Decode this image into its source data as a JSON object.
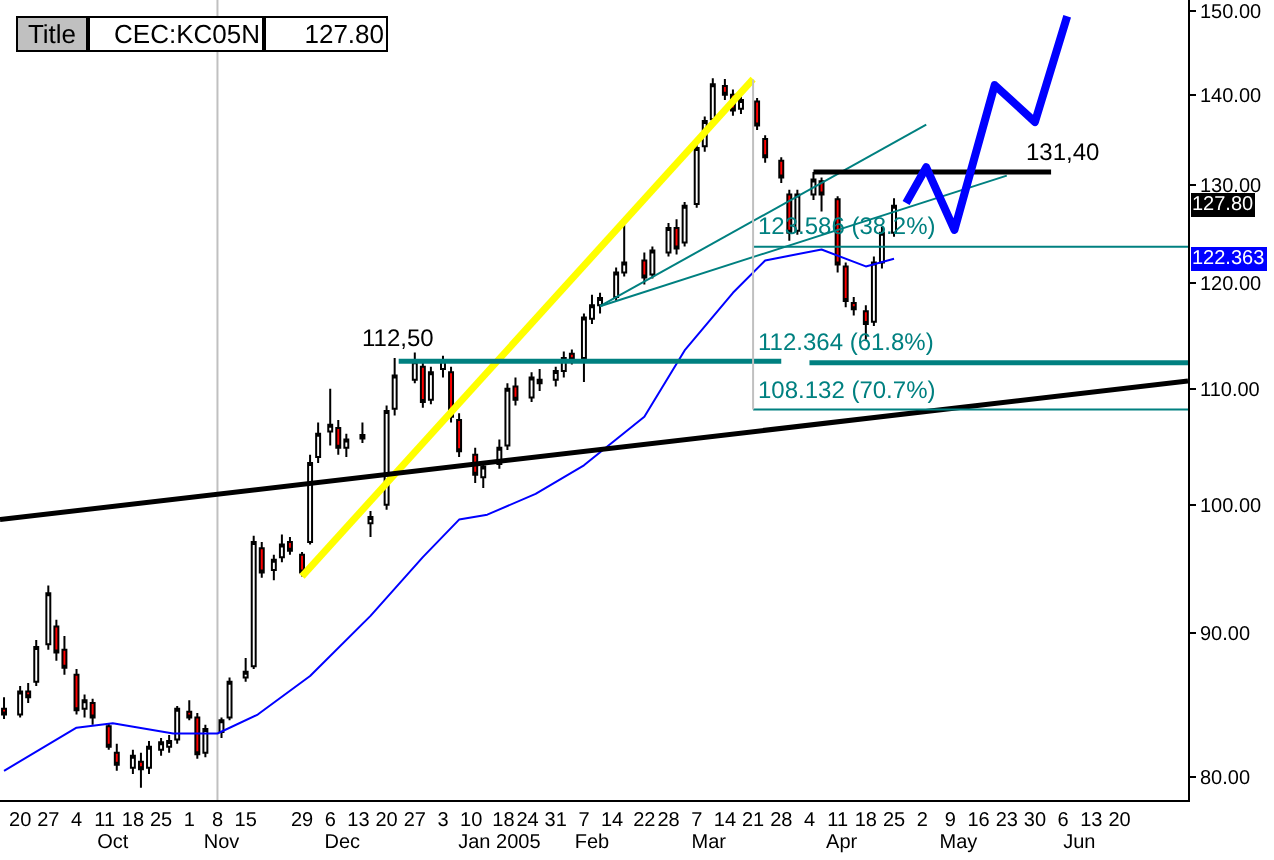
{
  "chart_data": {
    "type": "candlestick",
    "title": "Title",
    "subtitle": "CEC:KC05N",
    "color": "#000000",
    "x": [
      "2004-09-16",
      "2004-09-20",
      "2004-09-22",
      "2004-09-24",
      "2004-09-27",
      "2004-09-29",
      "2004-10-01",
      "2004-10-04",
      "2004-10-06",
      "2004-10-08",
      "2004-10-12",
      "2004-10-14",
      "2004-10-18",
      "2004-10-20",
      "2004-10-22",
      "2004-10-25",
      "2004-10-27",
      "2004-10-29",
      "2004-11-01",
      "2004-11-03",
      "2004-11-05",
      "2004-11-09",
      "2004-11-11",
      "2004-11-15",
      "2004-11-17",
      "2004-11-19",
      "2004-11-22",
      "2004-11-24",
      "2004-11-26",
      "2004-11-29",
      "2004-12-01",
      "2004-12-03",
      "2004-12-06",
      "2004-12-08",
      "2004-12-10",
      "2004-12-14",
      "2004-12-16",
      "2004-12-20",
      "2004-12-22",
      "2004-12-27",
      "2004-12-29",
      "2004-12-31",
      "2005-01-03",
      "2005-01-05",
      "2005-01-07",
      "2005-01-11",
      "2005-01-13",
      "2005-01-17",
      "2005-01-19",
      "2005-01-21",
      "2005-01-25",
      "2005-01-27",
      "2005-01-31",
      "2005-02-02",
      "2005-02-04",
      "2005-02-07",
      "2005-02-09",
      "2005-02-11",
      "2005-02-15",
      "2005-02-17",
      "2005-02-22",
      "2005-02-24",
      "2005-02-28",
      "2005-03-02",
      "2005-03-04",
      "2005-03-07",
      "2005-03-09",
      "2005-03-11",
      "2005-03-14",
      "2005-03-16",
      "2005-03-18",
      "2005-03-22",
      "2005-03-24",
      "2005-03-28",
      "2005-03-30",
      "2005-04-01",
      "2005-04-05",
      "2005-04-07",
      "2005-04-11",
      "2005-04-13",
      "2005-04-15",
      "2005-04-18",
      "2005-04-20",
      "2005-04-22",
      "2005-04-25"
    ],
    "ohlc": [
      [
        84.6,
        85.4,
        83.9,
        84.2
      ],
      [
        84.2,
        86.2,
        84.0,
        85.8
      ],
      [
        85.8,
        86.4,
        85.0,
        85.4
      ],
      [
        86.5,
        89.5,
        86.2,
        89.0
      ],
      [
        89.2,
        93.6,
        88.8,
        93.0
      ],
      [
        90.5,
        91.0,
        88.0,
        88.6
      ],
      [
        88.8,
        89.8,
        87.0,
        87.5
      ],
      [
        87.0,
        87.4,
        84.2,
        84.5
      ],
      [
        84.6,
        85.6,
        84.0,
        85.2
      ],
      [
        85.0,
        85.3,
        83.5,
        84.0
      ],
      [
        83.4,
        83.6,
        81.8,
        82.0
      ],
      [
        81.6,
        82.2,
        80.4,
        80.8
      ],
      [
        80.6,
        81.8,
        80.2,
        81.4
      ],
      [
        81.0,
        81.6,
        79.3,
        80.5
      ],
      [
        80.6,
        82.4,
        80.2,
        82.0
      ],
      [
        81.8,
        82.6,
        81.4,
        82.3
      ],
      [
        82.0,
        82.8,
        81.6,
        82.4
      ],
      [
        82.5,
        84.8,
        82.2,
        84.6
      ],
      [
        84.4,
        85.2,
        83.8,
        84.0
      ],
      [
        84.0,
        84.3,
        81.2,
        81.5
      ],
      [
        81.6,
        83.5,
        81.3,
        83.2
      ],
      [
        83.0,
        84.0,
        82.6,
        83.8
      ],
      [
        84.0,
        86.8,
        83.8,
        86.5
      ],
      [
        86.8,
        88.2,
        86.5,
        87.2
      ],
      [
        87.6,
        97.5,
        87.4,
        97.0
      ],
      [
        96.5,
        97.0,
        94.2,
        94.6
      ],
      [
        94.8,
        96.0,
        94.0,
        95.6
      ],
      [
        95.8,
        97.6,
        95.4,
        96.8
      ],
      [
        97.0,
        97.4,
        96.0,
        96.3
      ],
      [
        96.0,
        96.2,
        94.3,
        94.6
      ],
      [
        97.0,
        104.2,
        96.8,
        103.5
      ],
      [
        104.0,
        107.0,
        103.5,
        106.0
      ],
      [
        106.2,
        110.0,
        105.0,
        106.8
      ],
      [
        106.5,
        107.2,
        104.2,
        104.8
      ],
      [
        104.8,
        106.0,
        104.0,
        105.5
      ],
      [
        105.6,
        107.0,
        105.2,
        105.9
      ],
      [
        98.5,
        99.5,
        97.4,
        99.0
      ],
      [
        100.0,
        108.5,
        99.6,
        108.0
      ],
      [
        108.2,
        112.8,
        107.6,
        111.2
      ],
      [
        110.8,
        113.3,
        110.5,
        112.5
      ],
      [
        112.0,
        112.4,
        108.3,
        108.8
      ],
      [
        109.0,
        112.0,
        108.6,
        111.5
      ],
      [
        111.8,
        113.0,
        111.0,
        112.6
      ],
      [
        111.5,
        112.0,
        107.0,
        107.5
      ],
      [
        107.2,
        107.8,
        104.0,
        104.5
      ],
      [
        104.2,
        104.8,
        101.8,
        102.5
      ],
      [
        102.3,
        103.6,
        101.4,
        103.2
      ],
      [
        103.4,
        105.5,
        103.0,
        104.8
      ],
      [
        105.0,
        110.5,
        104.6,
        110.0
      ],
      [
        110.2,
        111.0,
        108.5,
        109.0
      ],
      [
        109.2,
        111.5,
        108.8,
        111.0
      ],
      [
        110.8,
        111.8,
        109.8,
        110.5
      ],
      [
        110.8,
        112.0,
        110.2,
        111.6
      ],
      [
        111.6,
        113.4,
        111.0,
        112.8
      ],
      [
        113.2,
        113.6,
        112.2,
        112.6
      ],
      [
        112.8,
        117.0,
        110.6,
        116.6
      ],
      [
        116.5,
        118.8,
        116.0,
        117.8
      ],
      [
        117.8,
        119.0,
        117.0,
        118.5
      ],
      [
        118.6,
        121.5,
        118.2,
        121.0
      ],
      [
        121.0,
        125.8,
        120.6,
        122.0
      ],
      [
        122.2,
        123.0,
        119.8,
        120.5
      ],
      [
        120.8,
        123.6,
        120.4,
        123.2
      ],
      [
        123.0,
        126.0,
        122.6,
        125.5
      ],
      [
        125.5,
        126.4,
        122.8,
        123.4
      ],
      [
        124.0,
        128.2,
        123.6,
        127.8
      ],
      [
        128.0,
        134.5,
        127.6,
        134.0
      ],
      [
        134.2,
        137.5,
        133.6,
        137.0
      ],
      [
        137.2,
        141.9,
        136.8,
        141.2
      ],
      [
        141.0,
        141.8,
        139.4,
        140.0
      ],
      [
        140.0,
        140.6,
        137.6,
        138.2
      ],
      [
        138.4,
        139.8,
        137.8,
        139.4
      ],
      [
        139.2,
        139.6,
        136.0,
        136.5
      ],
      [
        135.0,
        135.4,
        132.4,
        133.0
      ],
      [
        132.6,
        133.0,
        130.2,
        130.8
      ],
      [
        129.0,
        129.5,
        124.2,
        125.0
      ],
      [
        125.2,
        129.5,
        124.8,
        129.0
      ],
      [
        129.0,
        131.4,
        128.4,
        130.6
      ],
      [
        130.4,
        130.8,
        127.2,
        129.0
      ],
      [
        128.5,
        128.8,
        121.0,
        121.8
      ],
      [
        121.6,
        122.0,
        117.6,
        118.2
      ],
      [
        118.0,
        118.6,
        116.8,
        117.4
      ],
      [
        117.2,
        117.8,
        114.5,
        116.0
      ],
      [
        116.2,
        122.6,
        115.8,
        122.0
      ],
      [
        122.0,
        125.6,
        121.4,
        125.0
      ],
      [
        125.0,
        128.6,
        124.6,
        127.8
      ]
    ],
    "series": [
      {
        "type": "line",
        "color": "#0000ff",
        "x": [
          "2004-09-16",
          "2004-10-04",
          "2004-10-13",
          "2004-10-28",
          "2004-11-08",
          "2004-11-18",
          "2004-12-01",
          "2004-12-16",
          "2004-12-29",
          "2005-01-07",
          "2005-01-14",
          "2005-01-26",
          "2005-02-07",
          "2005-02-22",
          "2005-03-04",
          "2005-03-16",
          "2005-03-24",
          "2005-04-07",
          "2005-04-18",
          "2005-04-25"
        ],
        "values": [
          80.4,
          83.3,
          83.6,
          82.9,
          82.9,
          84.2,
          86.9,
          91.3,
          95.8,
          98.8,
          99.2,
          100.9,
          103.3,
          107.5,
          113.5,
          119.0,
          122.2,
          123.3,
          121.6,
          122.363
        ]
      },
      {
        "type": "line",
        "color": "#ffff00",
        "x": [
          "2004-11-29",
          "2005-03-21"
        ],
        "values": [
          94.3,
          141.8
        ]
      },
      {
        "type": "line",
        "color": "#000000",
        "x": [
          "2004-09-15",
          "2005-07-07"
        ],
        "values": [
          98.8,
          110.7
        ]
      },
      {
        "type": "line",
        "color": "#008080",
        "x": [
          "2005-02-11",
          "2005-05-03"
        ],
        "values": [
          117.7,
          136.6
        ]
      },
      {
        "type": "line",
        "color": "#008080",
        "x": [
          "2005-02-11",
          "2005-05-23"
        ],
        "values": [
          117.7,
          131.0
        ]
      },
      {
        "type": "line",
        "color": "#008080",
        "x": [
          "2004-12-23",
          "2005-03-28"
        ],
        "values": [
          112.5,
          112.5
        ]
      },
      {
        "type": "line",
        "color": "#008080",
        "x": [
          "2005-03-21",
          "2005-07-07"
        ],
        "values": [
          123.586,
          123.586
        ]
      },
      {
        "type": "line",
        "color": "#008080",
        "x": [
          "2005-04-04",
          "2005-07-07"
        ],
        "values": [
          112.364,
          112.364
        ]
      },
      {
        "type": "line",
        "color": "#008080",
        "x": [
          "2005-03-21",
          "2005-07-07"
        ],
        "values": [
          108.132,
          108.132
        ]
      },
      {
        "type": "line",
        "color": "#c0c0c0",
        "x": [
          "2005-03-21",
          "2005-03-21"
        ],
        "values": [
          141.75,
          108.132
        ]
      },
      {
        "type": "line",
        "color": "#000000",
        "x": [
          "2005-04-05",
          "2005-06-03"
        ],
        "values": [
          131.4,
          131.4
        ]
      },
      {
        "type": "line",
        "color": "#0000ff",
        "x": [
          "2005-04-28",
          "2005-05-03",
          "2005-05-10",
          "2005-05-20",
          "2005-05-30",
          "2005-06-07"
        ],
        "values": [
          128.1,
          131.9,
          125.3,
          141.1,
          136.9,
          149.3
        ]
      }
    ],
    "xlim": [
      "2004-09-15",
      "2005-07-07"
    ],
    "xticks": [
      {
        "value": "2004-09-20",
        "label": "20"
      },
      {
        "value": "2004-09-27",
        "label": "27"
      },
      {
        "value": "2004-10-04",
        "label": "4"
      },
      {
        "value": "2004-10-11",
        "label": "11"
      },
      {
        "value": "2004-10-18",
        "label": "18"
      },
      {
        "value": "2004-10-25",
        "label": "25"
      },
      {
        "value": "2004-11-01",
        "label": "1"
      },
      {
        "value": "2004-11-08",
        "label": "8"
      },
      {
        "value": "2004-11-15",
        "label": "15"
      },
      {
        "value": "2004-11-29",
        "label": "29"
      },
      {
        "value": "2004-12-06",
        "label": "6"
      },
      {
        "value": "2004-12-13",
        "label": "13"
      },
      {
        "value": "2004-12-20",
        "label": "20"
      },
      {
        "value": "2004-12-27",
        "label": "27"
      },
      {
        "value": "2005-01-03",
        "label": "3"
      },
      {
        "value": "2005-01-10",
        "label": "10"
      },
      {
        "value": "2005-01-18",
        "label": "18"
      },
      {
        "value": "2005-01-24",
        "label": "24"
      },
      {
        "value": "2005-01-31",
        "label": "31"
      },
      {
        "value": "2005-02-07",
        "label": "7"
      },
      {
        "value": "2005-02-14",
        "label": "14"
      },
      {
        "value": "2005-02-22",
        "label": "22"
      },
      {
        "value": "2005-02-28",
        "label": "28"
      },
      {
        "value": "2005-03-07",
        "label": "7"
      },
      {
        "value": "2005-03-14",
        "label": "14"
      },
      {
        "value": "2005-03-21",
        "label": "21"
      },
      {
        "value": "2005-03-28",
        "label": "28"
      },
      {
        "value": "2005-04-04",
        "label": "4"
      },
      {
        "value": "2005-04-11",
        "label": "11"
      },
      {
        "value": "2005-04-18",
        "label": "18"
      },
      {
        "value": "2005-04-25",
        "label": "25"
      },
      {
        "value": "2005-05-02",
        "label": "2"
      },
      {
        "value": "2005-05-09",
        "label": "9"
      },
      {
        "value": "2005-05-16",
        "label": "16"
      },
      {
        "value": "2005-05-23",
        "label": "23"
      },
      {
        "value": "2005-05-30",
        "label": "30"
      },
      {
        "value": "2005-06-06",
        "label": "6"
      },
      {
        "value": "2005-06-13",
        "label": "13"
      },
      {
        "value": "2005-06-20",
        "label": "20"
      }
    ],
    "x2lim": [
      "2004-09-15",
      "2005-07-07"
    ],
    "x2ticks": [
      {
        "value": "2004-10-13",
        "label": "Oct"
      },
      {
        "value": "2004-11-09",
        "label": "Nov"
      },
      {
        "value": "2004-12-09",
        "label": "Dec"
      },
      {
        "value": "2005-01-17",
        "label": "Jan 2005"
      },
      {
        "value": "2005-02-09",
        "label": "Feb"
      },
      {
        "value": "2005-03-10",
        "label": "Mar"
      },
      {
        "value": "2005-04-12",
        "label": "Apr"
      },
      {
        "value": "2005-05-11",
        "label": "May"
      },
      {
        "value": "2005-06-10",
        "label": "Jun"
      }
    ],
    "ylim": [
      78.5,
      151.3
    ],
    "yticks": [
      {
        "value": 80,
        "label": "80.00"
      },
      {
        "value": 90,
        "label": "90.00"
      },
      {
        "value": 100,
        "label": "100.00"
      },
      {
        "value": 110,
        "label": "110.00"
      },
      {
        "value": 120,
        "label": "120.00"
      },
      {
        "value": 130,
        "label": "130.00"
      },
      {
        "value": 140,
        "label": "140.00"
      },
      {
        "value": 150,
        "label": "150.00"
      }
    ],
    "log": "y",
    "ref_lines": [
      {
        "axis": "x",
        "value": "2004-11-08",
        "color": "#c0c0c0"
      }
    ],
    "annotations": [
      "127.80",
      "127.80",
      "122.363",
      {
        "text": "112,50",
        "x": "2004-12-23",
        "y": 112.5
      },
      {
        "text": "131,40",
        "x": "2005-05-27",
        "y": 131.4
      },
      {
        "text": "123.586 (38.2%)",
        "x": "2005-03-21",
        "y": 123.586
      },
      {
        "text": "112.364 (61.8%)",
        "x": "2005-03-21",
        "y": 112.364
      },
      {
        "text": "108.132 (70.7%)",
        "x": "2005-03-21",
        "y": 108.132
      }
    ]
  }
}
